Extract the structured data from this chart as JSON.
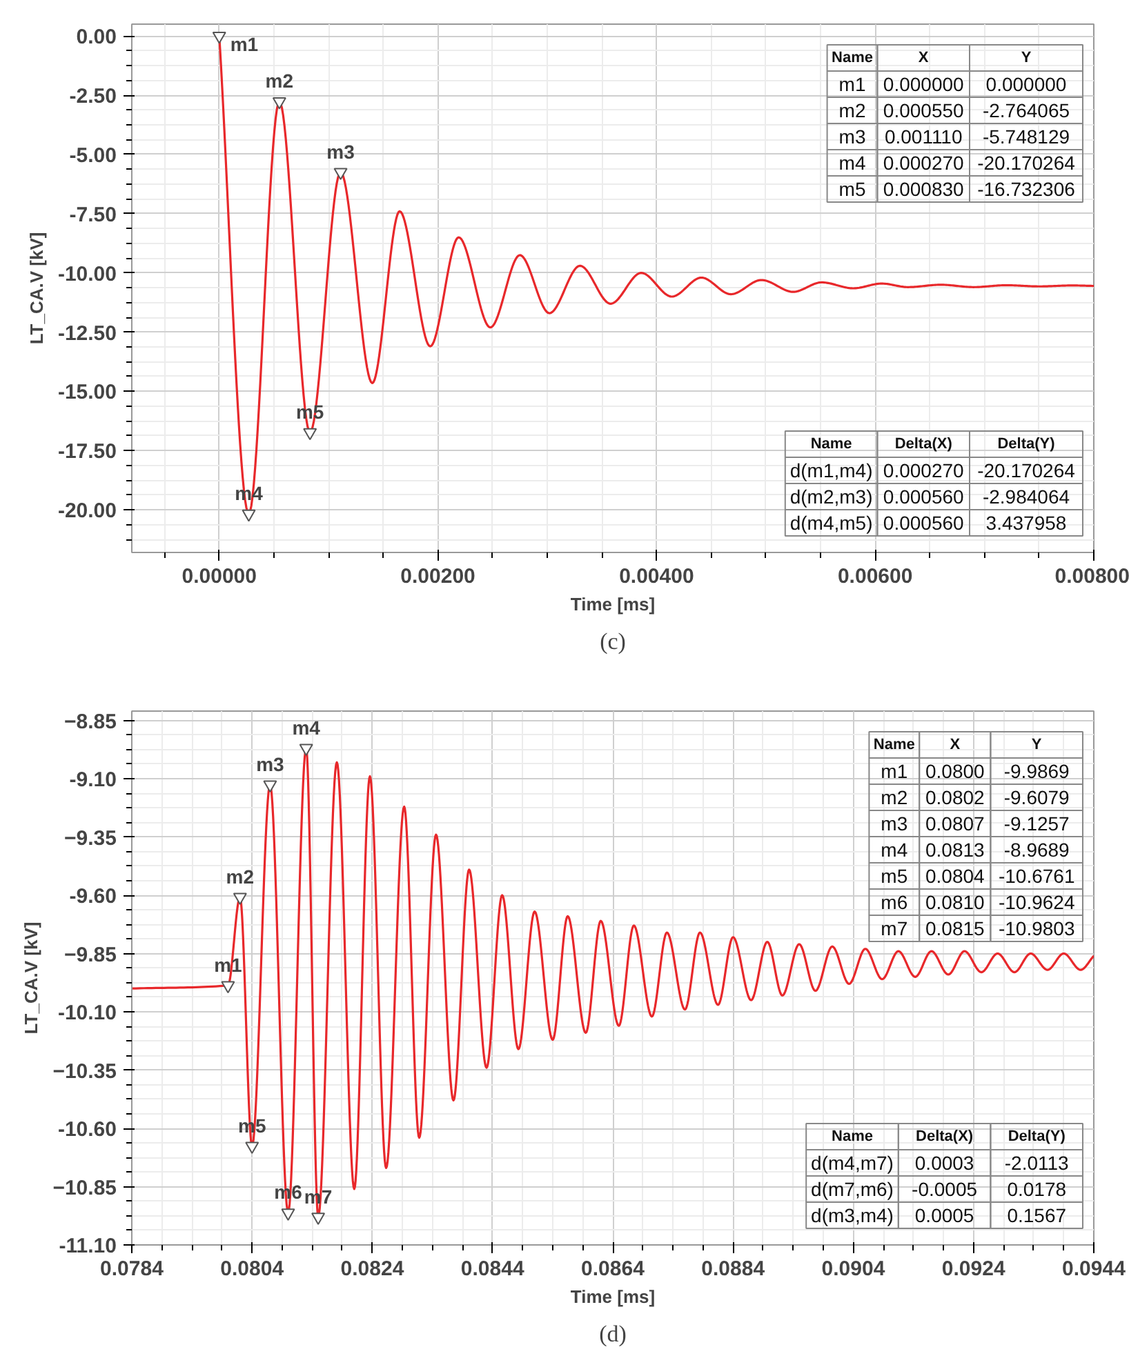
{
  "chart_data": [
    {
      "type": "line",
      "xlabel": "Time [ms]",
      "ylabel": "LT_CA.V [kV]",
      "grid": true,
      "xlim": [
        -0.0008,
        0.008
      ],
      "ylim": [
        -21.8,
        0.5
      ],
      "xticks": [
        {
          "value": 0,
          "label": "0.00000"
        },
        {
          "value": 0.002,
          "label": "0.00200"
        },
        {
          "value": 0.004,
          "label": "0.00400"
        },
        {
          "value": 0.006,
          "label": "0.00600"
        },
        {
          "value": 0.008,
          "label": "0.00800"
        }
      ],
      "yticks": [
        {
          "value": 0,
          "label": "0.00"
        },
        {
          "value": -2.5,
          "label": "-2.50"
        },
        {
          "value": -5,
          "label": "-5.00"
        },
        {
          "value": -7.5,
          "label": "-7.50"
        },
        {
          "value": -10,
          "label": "-10.00"
        },
        {
          "value": -12.5,
          "label": "-12.50"
        },
        {
          "value": -15,
          "label": "-15.00"
        },
        {
          "value": -17.5,
          "label": "-17.50"
        },
        {
          "value": -20,
          "label": "-20.00"
        }
      ],
      "series": [
        {
          "color": "#e8282b",
          "x": [
            0,
            0.00027,
            0.00055,
            0.00083,
            0.00111,
            0.0014,
            0.00165,
            0.00193,
            0.00219,
            0.00248,
            0.00275,
            0.00302,
            0.0033,
            0.00358,
            0.00386,
            0.00414,
            0.00441,
            0.00468,
            0.00496,
            0.00525,
            0.00551,
            0.0058,
            0.00606,
            0.0063,
            0.0066,
            0.0069,
            0.0072,
            0.0075,
            0.0078,
            0.008
          ],
          "values": [
            0,
            -20.170264,
            -2.764065,
            -16.732306,
            -5.748129,
            -14.65,
            -7.4,
            -13.1,
            -8.5,
            -12.3,
            -9.25,
            -11.7,
            -9.7,
            -11.3,
            -10.0,
            -11.0,
            -10.2,
            -10.9,
            -10.3,
            -10.8,
            -10.4,
            -10.65,
            -10.45,
            -10.6,
            -10.5,
            -10.6,
            -10.52,
            -10.57,
            -10.53,
            -10.55
          ]
        }
      ],
      "annotations": [
        {
          "text": "m1",
          "x": 0,
          "y": 0
        },
        {
          "text": "m2",
          "x": 0.00055,
          "y": -2.764065
        },
        {
          "text": "m3",
          "x": 0.00111,
          "y": -5.748129
        },
        {
          "text": "m4",
          "x": 0.00027,
          "y": -20.170264
        },
        {
          "text": "m5",
          "x": 0.00083,
          "y": -16.732306
        },
        "Name",
        "X",
        "Y",
        "m1",
        "0.000000",
        "0.000000",
        "m2",
        "0.000550",
        "-2.764065",
        "m3",
        "0.001110",
        "-5.748129",
        "m4",
        "0.000270",
        "-20.170264",
        "m5",
        "0.000830",
        "-16.732306",
        "Name",
        "Delta(X)",
        "Delta(Y)",
        "d(m1,m4)",
        "0.000270",
        "-20.170264",
        "d(m2,m3)",
        "0.000560",
        "-2.984064",
        "d(m4,m5)",
        "0.000560",
        "3.437958",
        "(c)"
      ]
    },
    {
      "type": "line",
      "xlabel": "Time [ms]",
      "ylabel": "LT_CA.V [kV]",
      "grid": true,
      "xlim": [
        0.0784,
        0.0944
      ],
      "ylim": [
        -11.1,
        -8.81
      ],
      "xticks": [
        {
          "value": 0.0784,
          "label": "0.0784"
        },
        {
          "value": 0.0804,
          "label": "0.0804"
        },
        {
          "value": 0.0824,
          "label": "0.0824"
        },
        {
          "value": 0.0844,
          "label": "0.0844"
        },
        {
          "value": 0.0864,
          "label": "0.0864"
        },
        {
          "value": 0.0884,
          "label": "0.0884"
        },
        {
          "value": 0.0904,
          "label": "0.0904"
        },
        {
          "value": 0.0924,
          "label": "0.0924"
        },
        {
          "value": 0.0944,
          "label": "0.0944"
        }
      ],
      "yticks": [
        -8.85,
        {
          "value": -9.1,
          "label": "-9.10"
        },
        -9.35,
        {
          "value": -9.6,
          "label": "-9.60"
        },
        -9.85,
        {
          "value": -10.1,
          "label": "-10.10"
        },
        -10.35,
        {
          "value": -10.6,
          "label": "-10.60"
        },
        -10.85,
        {
          "value": -11.1,
          "label": "-11.10"
        }
      ],
      "series": [
        {
          "color": "#e8282b",
          "x": [
            0.0784,
            0.08,
            0.0802,
            0.0804,
            0.0807,
            0.081,
            0.0813,
            0.0815,
            0.08181,
            0.0821,
            0.08236,
            0.08263,
            0.08293,
            0.08318,
            0.08346,
            0.08375,
            0.08401,
            0.0843,
            0.08456,
            0.08483,
            0.0851,
            0.0854,
            0.08565,
            0.08595,
            0.0862,
            0.0865,
            0.08675,
            0.08705,
            0.0873,
            0.0876,
            0.08785,
            0.08815,
            0.0884,
            0.0887,
            0.08897,
            0.08922,
            0.0895,
            0.08977,
            0.09005,
            0.09033,
            0.0906,
            0.09088,
            0.09115,
            0.09143,
            0.0917,
            0.09198,
            0.09225,
            0.09253,
            0.0928,
            0.09308,
            0.09335,
            0.09363,
            0.0939,
            0.09418,
            0.0944
          ],
          "values": [
            -10.0,
            -9.9869,
            -9.6079,
            -10.6761,
            -9.1257,
            -10.9624,
            -8.9689,
            -10.9803,
            -9.03,
            -10.86,
            -9.09,
            -10.77,
            -9.22,
            -10.64,
            -9.34,
            -10.48,
            -9.49,
            -10.34,
            -9.6,
            -10.26,
            -9.67,
            -10.22,
            -9.69,
            -10.19,
            -9.71,
            -10.16,
            -9.73,
            -10.12,
            -9.76,
            -10.09,
            -9.76,
            -10.07,
            -9.78,
            -10.05,
            -9.8,
            -10.03,
            -9.81,
            -10.01,
            -9.82,
            -9.98,
            -9.83,
            -9.96,
            -9.84,
            -9.95,
            -9.84,
            -9.94,
            -9.84,
            -9.93,
            -9.85,
            -9.93,
            -9.85,
            -9.92,
            -9.85,
            -9.92,
            -9.86
          ]
        }
      ],
      "annotations": [
        {
          "text": "m1",
          "x": 0.08,
          "y": -9.9869
        },
        {
          "text": "m2",
          "x": 0.0802,
          "y": -9.6079
        },
        {
          "text": "m3",
          "x": 0.0807,
          "y": -9.1257
        },
        {
          "text": "m4",
          "x": 0.0813,
          "y": -8.9689
        },
        {
          "text": "m5",
          "x": 0.0804,
          "y": -10.6761
        },
        {
          "text": "m6",
          "x": 0.081,
          "y": -10.9624
        },
        {
          "text": "m7",
          "x": 0.0815,
          "y": -10.9803
        },
        "Name",
        "X",
        "Y",
        "m1",
        "0.0800",
        "-9.9869",
        "m2",
        "0.0802",
        "-9.6079",
        "m3",
        "0.0807",
        "-9.1257",
        "m4",
        "0.0813",
        "-8.9689",
        "m5",
        "0.0804",
        "-10.6761",
        "m6",
        "0.0810",
        "-10.9624",
        "m7",
        "0.0815",
        "-10.9803",
        "Name",
        "Delta(X)",
        "Delta(Y)",
        "d(m4,m7)",
        "0.0003",
        "-2.0113",
        "d(m7,m6)",
        "-0.0005",
        "0.0178",
        "d(m3,m4)",
        "0.0005",
        "0.1567",
        "(d)"
      ]
    }
  ]
}
